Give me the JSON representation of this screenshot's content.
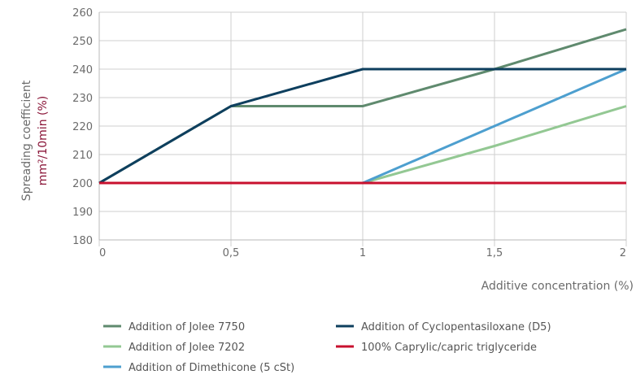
{
  "chart_data": {
    "type": "line",
    "x": [
      0,
      0.5,
      1,
      1.5,
      2
    ],
    "x_tick_labels": [
      "0",
      "0,5",
      "1",
      "1,5",
      "2"
    ],
    "y_ticks": [
      180,
      190,
      200,
      210,
      220,
      230,
      240,
      250,
      260
    ],
    "xlim": [
      0,
      2
    ],
    "ylim": [
      180,
      260
    ],
    "grid": true,
    "xlabel": "Additive concentration (%)",
    "ylabel_line1": "Spreading coefficient",
    "ylabel_line2": "mm²/10min (%)",
    "legend_position": "bottom",
    "series": [
      {
        "name": "Addition of Jolee 7750",
        "color": "#5f8a6e",
        "values": [
          200,
          227,
          227,
          240,
          254
        ]
      },
      {
        "name": "Addition of Jolee 7202",
        "color": "#93c893",
        "values": [
          200,
          200,
          200,
          213,
          227
        ]
      },
      {
        "name": "Addition of Dimethicone (5 cSt)",
        "color": "#4d9fcf",
        "values": [
          200,
          200,
          200,
          220,
          240
        ]
      },
      {
        "name": "Addition of Cyclopentasiloxane (D5)",
        "color": "#0e3f5e",
        "values": [
          200,
          227,
          240,
          240,
          240
        ]
      },
      {
        "name": "100% Caprylic/capric triglyceride",
        "color": "#c8102e",
        "values": [
          200,
          200,
          200,
          200,
          200
        ]
      }
    ]
  }
}
